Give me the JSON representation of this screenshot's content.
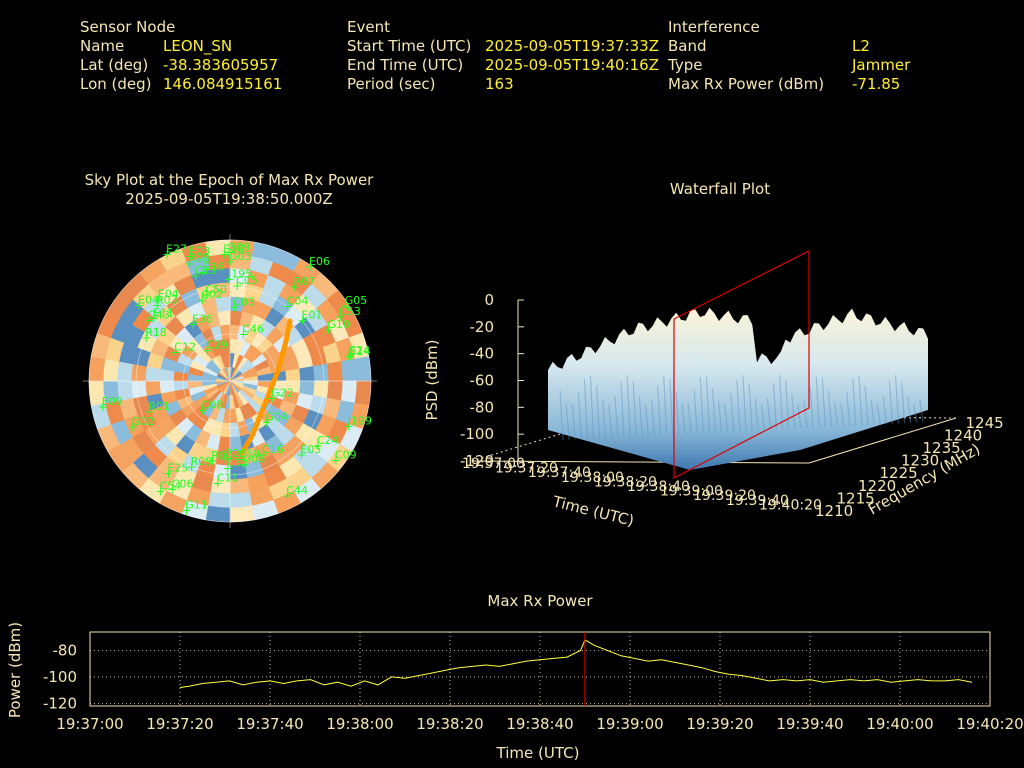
{
  "header": {
    "sensor": {
      "title": "Sensor Node",
      "rows": [
        {
          "label": "Name",
          "value": "LEON_SN"
        },
        {
          "label": "Lat (deg)",
          "value": "-38.383605957"
        },
        {
          "label": "Lon (deg)",
          "value": "146.084915161"
        }
      ]
    },
    "event": {
      "title": "Event",
      "rows": [
        {
          "label": "Start Time (UTC)",
          "value": "2025-09-05T19:37:33Z"
        },
        {
          "label": "End Time (UTC)",
          "value": "2025-09-05T19:40:16Z"
        },
        {
          "label": "Period (sec)",
          "value": "163"
        }
      ]
    },
    "interference": {
      "title": "Interference",
      "rows": [
        {
          "label": "Band",
          "value": "L2"
        },
        {
          "label": "Type",
          "value": "Jammer"
        },
        {
          "label": "Max Rx Power (dBm)",
          "value": "-71.85"
        }
      ]
    }
  },
  "colors": {
    "label": "#f5e6b4",
    "value": "#ffee33",
    "sat": "#22ff22",
    "track": "#ff9900",
    "line": "#ffff44",
    "marker": "#dd0000",
    "grid": "#f5e6b4"
  },
  "chart_data": [
    {
      "type": "scatter",
      "title": "Sky Plot at the Epoch of Max Rx Power",
      "subtitle": "2025-09-05T19:38:50.000Z",
      "satellites": [
        "J195",
        "G22",
        "E11",
        "C11",
        "G06",
        "G14",
        "E01",
        "C54",
        "G04",
        "E24",
        "E25",
        "C59",
        "J199",
        "C03",
        "C06",
        "C05",
        "E04",
        "R07",
        "C50",
        "C29",
        "E09",
        "C02",
        "C53",
        "R98",
        "G09",
        "C16",
        "C08",
        "E03",
        "C09",
        "G03",
        "C13",
        "G02",
        "C43",
        "E27",
        "C44",
        "G26",
        "C46",
        "C12",
        "C24",
        "E05",
        "C04",
        "G10",
        "G11",
        "E06",
        "E08",
        "R09",
        "E04",
        "C32",
        "R00",
        "G16",
        "E36",
        "G05",
        "R01",
        "R18",
        "R03"
      ]
    },
    {
      "type": "area",
      "title": "Waterfall Plot",
      "xlabel": "Time (UTC)",
      "ylabel": "Frequency (MHz)",
      "zlabel": "PSD (dBm)",
      "z_ticks": [
        "0",
        "-20",
        "-40",
        "-60",
        "-80",
        "-100",
        "-120"
      ],
      "x_ticks": [
        "19:37:00",
        "19:37:20",
        "19:37:40",
        "19:38:00",
        "19:38:20",
        "19:38:40",
        "19:39:00",
        "19:39:20",
        "19:39:40",
        "19:40:20"
      ],
      "y_ticks": [
        "1210",
        "1215",
        "1220",
        "1225",
        "1230",
        "1235",
        "1240",
        "1245"
      ],
      "zlim": [
        -120,
        0
      ]
    },
    {
      "type": "line",
      "title": "Max Rx Power",
      "xlabel": "Time (UTC)",
      "ylabel": "Power (dBm)",
      "x_ticks": [
        "19:37:00",
        "19:37:20",
        "19:37:40",
        "19:38:00",
        "19:38:20",
        "19:38:40",
        "19:39:00",
        "19:39:20",
        "19:39:40",
        "19:40:00",
        "19:40:20"
      ],
      "y_ticks": [
        -80,
        -100,
        -120
      ],
      "ylim": [
        -122,
        -66
      ],
      "xlim_sec": [
        0,
        200
      ],
      "grid": true,
      "marker_sec": 110,
      "series": [
        {
          "x": [
            20,
            22,
            25,
            28,
            31,
            34,
            37,
            40,
            43,
            46,
            49,
            52,
            55,
            58,
            61,
            64,
            67,
            70,
            73,
            76,
            79,
            82,
            85,
            88,
            91,
            94,
            97,
            100,
            103,
            106,
            109,
            110,
            112,
            115,
            118,
            121,
            124,
            127,
            130,
            133,
            136,
            139,
            142,
            145,
            148,
            151,
            154,
            157,
            160,
            163,
            166,
            169,
            172,
            175,
            178,
            181,
            184,
            187,
            190,
            193,
            196
          ],
          "y": [
            -108,
            -107,
            -105,
            -104,
            -103,
            -106,
            -104,
            -103,
            -105,
            -103,
            -102,
            -106,
            -104,
            -107,
            -103,
            -106,
            -100,
            -101,
            -99,
            -97,
            -95,
            -93,
            -92,
            -91,
            -92,
            -90,
            -88,
            -87,
            -86,
            -85,
            -80,
            -72,
            -76,
            -80,
            -84,
            -86,
            -88,
            -87,
            -89,
            -91,
            -93,
            -96,
            -98,
            -99,
            -101,
            -103,
            -102,
            -103,
            -102,
            -104,
            -103,
            -102,
            -103,
            -102,
            -104,
            -103,
            -102,
            -103,
            -103,
            -102,
            -104
          ]
        }
      ]
    }
  ]
}
